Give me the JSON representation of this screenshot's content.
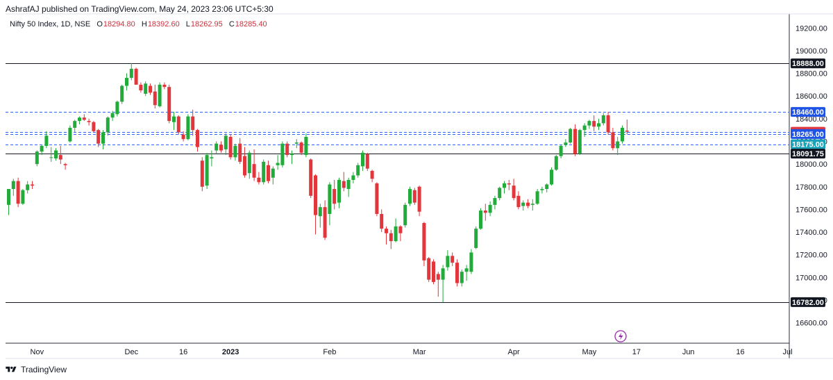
{
  "header": {
    "published_by": "AshrafAJ published on TradingView.com, May 24, 2023 23:06 UTC+5:30"
  },
  "symbol": {
    "name": "Nifty 50 Index, 1D, NSE",
    "open_label": "O",
    "open": "18294.80",
    "high_label": "H",
    "high": "18392.60",
    "low_label": "L",
    "low": "18262.95",
    "close_label": "C",
    "close": "18285.40"
  },
  "footer": {
    "brand": "TradingView"
  },
  "colors": {
    "up": "#26a69a",
    "up_fill": "#2ea043",
    "down": "#e03a3e",
    "dash": "#2962ff",
    "line": "#131722",
    "tag_blue": "#1e53e5",
    "tag_red": "#e03a3e",
    "tag_teal": "#1aa3b8"
  },
  "chart_data": {
    "type": "candlestick",
    "title": "Nifty 50 Index, 1D, NSE",
    "ylim": [
      16420,
      19300
    ],
    "y_ticks": [
      16600,
      16800,
      17000,
      17200,
      17400,
      17600,
      17800,
      18000,
      18200,
      18400,
      18600,
      18800,
      19000,
      19200
    ],
    "y_tick_labels": [
      "16600.00",
      "16800.00",
      "17000.00",
      "17200.00",
      "17400.00",
      "17600.00",
      "17800.00",
      "18000.00",
      "18200.00",
      "18400.00",
      "18600.00",
      "18800.00",
      "19000.00",
      "19200.00"
    ],
    "x_ticks": [
      {
        "label": "Nov",
        "bar": 6,
        "bold": false
      },
      {
        "label": "Dec",
        "bar": 26,
        "bold": false
      },
      {
        "label": "16",
        "bar": 37,
        "bold": false
      },
      {
        "label": "2023",
        "bar": 47,
        "bold": true
      },
      {
        "label": "Feb",
        "bar": 68,
        "bold": false
      },
      {
        "label": "Mar",
        "bar": 87,
        "bold": false
      },
      {
        "label": "Apr",
        "bar": 107,
        "bold": false
      },
      {
        "label": "May",
        "bar": 123,
        "bold": false
      },
      {
        "label": "17",
        "bar": 133,
        "bold": false
      },
      {
        "label": "Jun",
        "bar": 144,
        "bold": false
      },
      {
        "label": "16",
        "bar": 155,
        "bold": false
      },
      {
        "label": "Jul",
        "bar": 165,
        "bold": false
      }
    ],
    "levels": [
      {
        "value": 18888.0,
        "label": "18888.00",
        "style": "solid",
        "tag": "#131722"
      },
      {
        "value": 18460.0,
        "label": "18460.00",
        "style": "dashed",
        "tag": "#1e53e5"
      },
      {
        "value": 18285.4,
        "label": "18285.40",
        "style": "dashed",
        "tag": "#e03a3e"
      },
      {
        "value": 18265.0,
        "label": "18265.00",
        "style": "dashed",
        "tag": "#1e53e5"
      },
      {
        "value": 18175.0,
        "label": "18175.00",
        "style": "dashed",
        "tag": "#1aa3b8"
      },
      {
        "value": 18091.75,
        "label": "18091.75",
        "style": "solid",
        "tag": "#131722"
      },
      {
        "value": 16782.0,
        "label": "16782.00",
        "style": "solid",
        "tag": "#131722"
      }
    ],
    "candles": [
      [
        17640,
        17780,
        17550,
        17780
      ],
      [
        17780,
        17870,
        17720,
        17850
      ],
      [
        17850,
        17880,
        17620,
        17650
      ],
      [
        17650,
        17780,
        17640,
        17770
      ],
      [
        17770,
        17850,
        17740,
        17820
      ],
      [
        17820,
        17850,
        17780,
        17810
      ],
      [
        18000,
        18120,
        17980,
        18110
      ],
      [
        18110,
        18170,
        18080,
        18160
      ],
      [
        18160,
        18290,
        18140,
        18250
      ],
      [
        18060,
        18150,
        18020,
        18060
      ],
      [
        18050,
        18140,
        18030,
        18120
      ],
      [
        18080,
        18160,
        18000,
        18040
      ],
      [
        18000,
        18010,
        17950,
        17990
      ],
      [
        18200,
        18340,
        18190,
        18320
      ],
      [
        18320,
        18390,
        18280,
        18380
      ],
      [
        18380,
        18420,
        18350,
        18410
      ],
      [
        18410,
        18440,
        18380,
        18390
      ],
      [
        18380,
        18400,
        18340,
        18370
      ],
      [
        18370,
        18380,
        18280,
        18290
      ],
      [
        18300,
        18310,
        18150,
        18180
      ],
      [
        18180,
        18300,
        18130,
        18280
      ],
      [
        18280,
        18420,
        18250,
        18410
      ],
      [
        18410,
        18470,
        18380,
        18450
      ],
      [
        18440,
        18560,
        18420,
        18550
      ],
      [
        18550,
        18700,
        18530,
        18690
      ],
      [
        18690,
        18800,
        18650,
        18760
      ],
      [
        18760,
        18890,
        18740,
        18840
      ],
      [
        18840,
        18850,
        18700,
        18700
      ],
      [
        18700,
        18720,
        18630,
        18650
      ],
      [
        18620,
        18730,
        18600,
        18710
      ],
      [
        18690,
        18710,
        18610,
        18630
      ],
      [
        18640,
        18700,
        18490,
        18520
      ],
      [
        18510,
        18720,
        18500,
        18700
      ],
      [
        18700,
        18720,
        18660,
        18680
      ],
      [
        18680,
        18700,
        18360,
        18380
      ],
      [
        18370,
        18460,
        18300,
        18420
      ],
      [
        18420,
        18430,
        18260,
        18280
      ],
      [
        18260,
        18290,
        18200,
        18220
      ],
      [
        18220,
        18440,
        18210,
        18420
      ],
      [
        18420,
        18480,
        18250,
        18300
      ],
      [
        18300,
        18310,
        18110,
        18150
      ],
      [
        18030,
        18060,
        17760,
        17800
      ],
      [
        17810,
        18100,
        17780,
        18080
      ],
      [
        18050,
        18120,
        17980,
        18060
      ],
      [
        18120,
        18200,
        18090,
        18180
      ],
      [
        18170,
        18200,
        18100,
        18120
      ],
      [
        18130,
        18270,
        18080,
        18250
      ],
      [
        18240,
        18260,
        18040,
        18060
      ],
      [
        18060,
        18180,
        18030,
        18160
      ],
      [
        18180,
        18230,
        18000,
        18020
      ],
      [
        18070,
        18150,
        17880,
        17900
      ],
      [
        17920,
        18120,
        17870,
        18100
      ],
      [
        18000,
        18130,
        17850,
        17880
      ],
      [
        17880,
        17930,
        17820,
        17840
      ],
      [
        17840,
        18040,
        17820,
        18020
      ],
      [
        17990,
        18030,
        17830,
        17850
      ],
      [
        17880,
        17980,
        17820,
        17960
      ],
      [
        17990,
        18080,
        17950,
        18010
      ],
      [
        17990,
        18200,
        17970,
        18180
      ],
      [
        18180,
        18200,
        18060,
        18080
      ],
      [
        18080,
        18120,
        18000,
        18090
      ],
      [
        18180,
        18220,
        18140,
        18190
      ],
      [
        18190,
        18200,
        18080,
        18100
      ],
      [
        18080,
        18270,
        18060,
        18240
      ],
      [
        18040,
        18050,
        17700,
        17720
      ],
      [
        17900,
        17910,
        17380,
        17550
      ],
      [
        17540,
        17650,
        17440,
        17620
      ],
      [
        17620,
        17680,
        17330,
        17350
      ],
      [
        17560,
        17840,
        17460,
        17820
      ],
      [
        17780,
        17860,
        17600,
        17650
      ],
      [
        17660,
        17880,
        17610,
        17860
      ],
      [
        17850,
        17930,
        17760,
        17790
      ],
      [
        17780,
        17880,
        17710,
        17860
      ],
      [
        17860,
        17930,
        17830,
        17900
      ],
      [
        17900,
        18010,
        17880,
        17990
      ],
      [
        17980,
        18120,
        17940,
        18100
      ],
      [
        18090,
        18100,
        17940,
        17960
      ],
      [
        17940,
        17950,
        17840,
        17870
      ],
      [
        17830,
        17840,
        17540,
        17560
      ],
      [
        17560,
        17600,
        17400,
        17430
      ],
      [
        17430,
        17450,
        17290,
        17390
      ],
      [
        17390,
        17420,
        17250,
        17320
      ],
      [
        17320,
        17520,
        17310,
        17450
      ],
      [
        17450,
        17460,
        17320,
        17390
      ],
      [
        17460,
        17660,
        17440,
        17640
      ],
      [
        17650,
        17800,
        17630,
        17780
      ],
      [
        17770,
        17790,
        17640,
        17660
      ],
      [
        17800,
        17810,
        17540,
        17580
      ],
      [
        17480,
        17490,
        17100,
        17150
      ],
      [
        17170,
        17180,
        16960,
        16980
      ],
      [
        17140,
        17160,
        16940,
        16960
      ],
      [
        17030,
        17050,
        16830,
        16980
      ],
      [
        16980,
        17110,
        16780,
        17080
      ],
      [
        17090,
        17240,
        17060,
        17190
      ],
      [
        17190,
        17220,
        17100,
        17130
      ],
      [
        17130,
        17160,
        16920,
        16950
      ],
      [
        16950,
        17070,
        16920,
        17050
      ],
      [
        17050,
        17110,
        16970,
        17080
      ],
      [
        17050,
        17250,
        17030,
        17220
      ],
      [
        17260,
        17450,
        17250,
        17430
      ],
      [
        17430,
        17610,
        17420,
        17590
      ],
      [
        17590,
        17650,
        17500,
        17570
      ],
      [
        17570,
        17670,
        17540,
        17640
      ],
      [
        17640,
        17720,
        17600,
        17700
      ],
      [
        17700,
        17800,
        17680,
        17790
      ],
      [
        17790,
        17850,
        17740,
        17830
      ],
      [
        17830,
        17860,
        17770,
        17820
      ],
      [
        17810,
        17870,
        17680,
        17700
      ],
      [
        17720,
        17760,
        17600,
        17620
      ],
      [
        17630,
        17680,
        17590,
        17660
      ],
      [
        17660,
        17690,
        17610,
        17630
      ],
      [
        17640,
        17690,
        17590,
        17650
      ],
      [
        17650,
        17780,
        17640,
        17760
      ],
      [
        17770,
        17800,
        17740,
        17780
      ],
      [
        17780,
        17830,
        17750,
        17820
      ],
      [
        17820,
        17970,
        17810,
        17950
      ],
      [
        17950,
        18080,
        17940,
        18070
      ],
      [
        18070,
        18170,
        18050,
        18160
      ],
      [
        18170,
        18220,
        18150,
        18190
      ],
      [
        18190,
        18320,
        18180,
        18310
      ],
      [
        18310,
        18350,
        18070,
        18090
      ],
      [
        18090,
        18310,
        18080,
        18300
      ],
      [
        18300,
        18360,
        18240,
        18340
      ],
      [
        18340,
        18390,
        18310,
        18380
      ],
      [
        18380,
        18430,
        18290,
        18330
      ],
      [
        18330,
        18400,
        18300,
        18360
      ],
      [
        18360,
        18450,
        18340,
        18430
      ],
      [
        18430,
        18460,
        18260,
        18280
      ],
      [
        18280,
        18320,
        18120,
        18140
      ],
      [
        18140,
        18240,
        18080,
        18200
      ],
      [
        18200,
        18340,
        18180,
        18320
      ],
      [
        18294.8,
        18392.6,
        18262.95,
        18285.4
      ]
    ]
  }
}
